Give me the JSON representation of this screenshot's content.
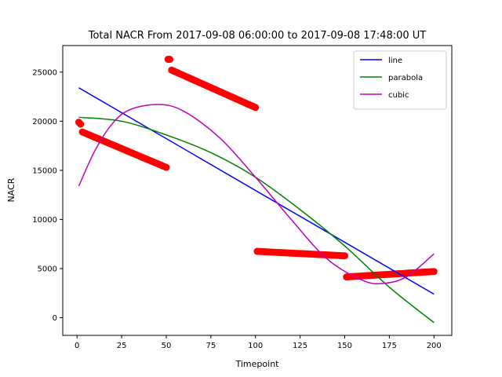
{
  "chart_data": {
    "type": "scatter",
    "title": "Total NACR From 2017-09-08 06:00:00 to 2017-09-08 17:48:00 UT",
    "xlabel": "Timepoint",
    "ylabel": "NACR",
    "xlim": [
      -8,
      210
    ],
    "ylim": [
      -1800,
      27700
    ],
    "xticks": [
      0,
      25,
      50,
      75,
      100,
      125,
      150,
      175,
      200
    ],
    "yticks": [
      0,
      5000,
      10000,
      15000,
      20000,
      25000
    ],
    "grid": false,
    "legend_position": "upper-right",
    "observations": {
      "color": "#ff0000",
      "segments": [
        {
          "x_start": 1,
          "x_end": 2,
          "y_start": 19900,
          "y_end": 19700
        },
        {
          "x_start": 3,
          "x_end": 50,
          "y_start": 18900,
          "y_end": 15300
        },
        {
          "x_start": 51,
          "x_end": 52,
          "y_start": 26300,
          "y_end": 26300
        },
        {
          "x_start": 53,
          "x_end": 100,
          "y_start": 25200,
          "y_end": 21400
        },
        {
          "x_start": 101,
          "x_end": 150,
          "y_start": 6750,
          "y_end": 6300
        },
        {
          "x_start": 151,
          "x_end": 200,
          "y_start": 4150,
          "y_end": 4700
        }
      ]
    },
    "series": [
      {
        "name": "line",
        "color": "#0000ff",
        "x": [
          1,
          200
        ],
        "y": [
          23400,
          2400
        ]
      },
      {
        "name": "parabola",
        "color": "#008000",
        "x": [
          1,
          25,
          50,
          75,
          100,
          125,
          150,
          175,
          200
        ],
        "y": [
          20400,
          20000,
          18600,
          16800,
          14300,
          11000,
          7300,
          3100,
          -500
        ]
      },
      {
        "name": "cubic",
        "color": "#bf00bf",
        "x": [
          1,
          10,
          20,
          30,
          46,
          60,
          80,
          100,
          120,
          140,
          160,
          172,
          185,
          200
        ],
        "y": [
          13400,
          17000,
          19800,
          21200,
          21700,
          21000,
          18300,
          14300,
          10000,
          6000,
          3800,
          3500,
          4200,
          6500
        ]
      }
    ]
  }
}
